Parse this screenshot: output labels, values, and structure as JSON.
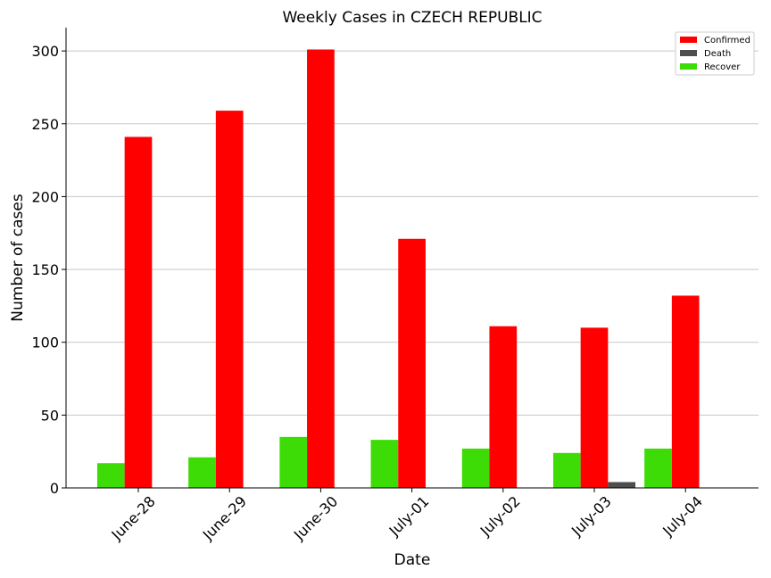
{
  "chart_data": {
    "type": "bar",
    "title": "Weekly Cases in CZECH REPUBLIC",
    "xlabel": "Date",
    "ylabel": "Number of cases",
    "categories": [
      "June-28",
      "June-29",
      "June-30",
      "July-01",
      "July-02",
      "July-03",
      "July-04"
    ],
    "yticks": [
      0,
      50,
      100,
      150,
      200,
      250,
      300
    ],
    "ylim": [
      0,
      316
    ],
    "grid": "horizontal",
    "legend_position": "top-right",
    "series": [
      {
        "name": "Recover",
        "color": "#3ddc06",
        "values": [
          17,
          21,
          35,
          33,
          27,
          24,
          27
        ]
      },
      {
        "name": "Confirmed",
        "color": "#ff0000",
        "values": [
          241,
          259,
          301,
          171,
          111,
          110,
          132
        ]
      },
      {
        "name": "Death",
        "color": "#4d4d4d",
        "values": [
          0,
          0,
          0,
          0,
          0,
          4,
          0
        ]
      }
    ],
    "legend_order": [
      "Confirmed",
      "Death",
      "Recover"
    ]
  }
}
